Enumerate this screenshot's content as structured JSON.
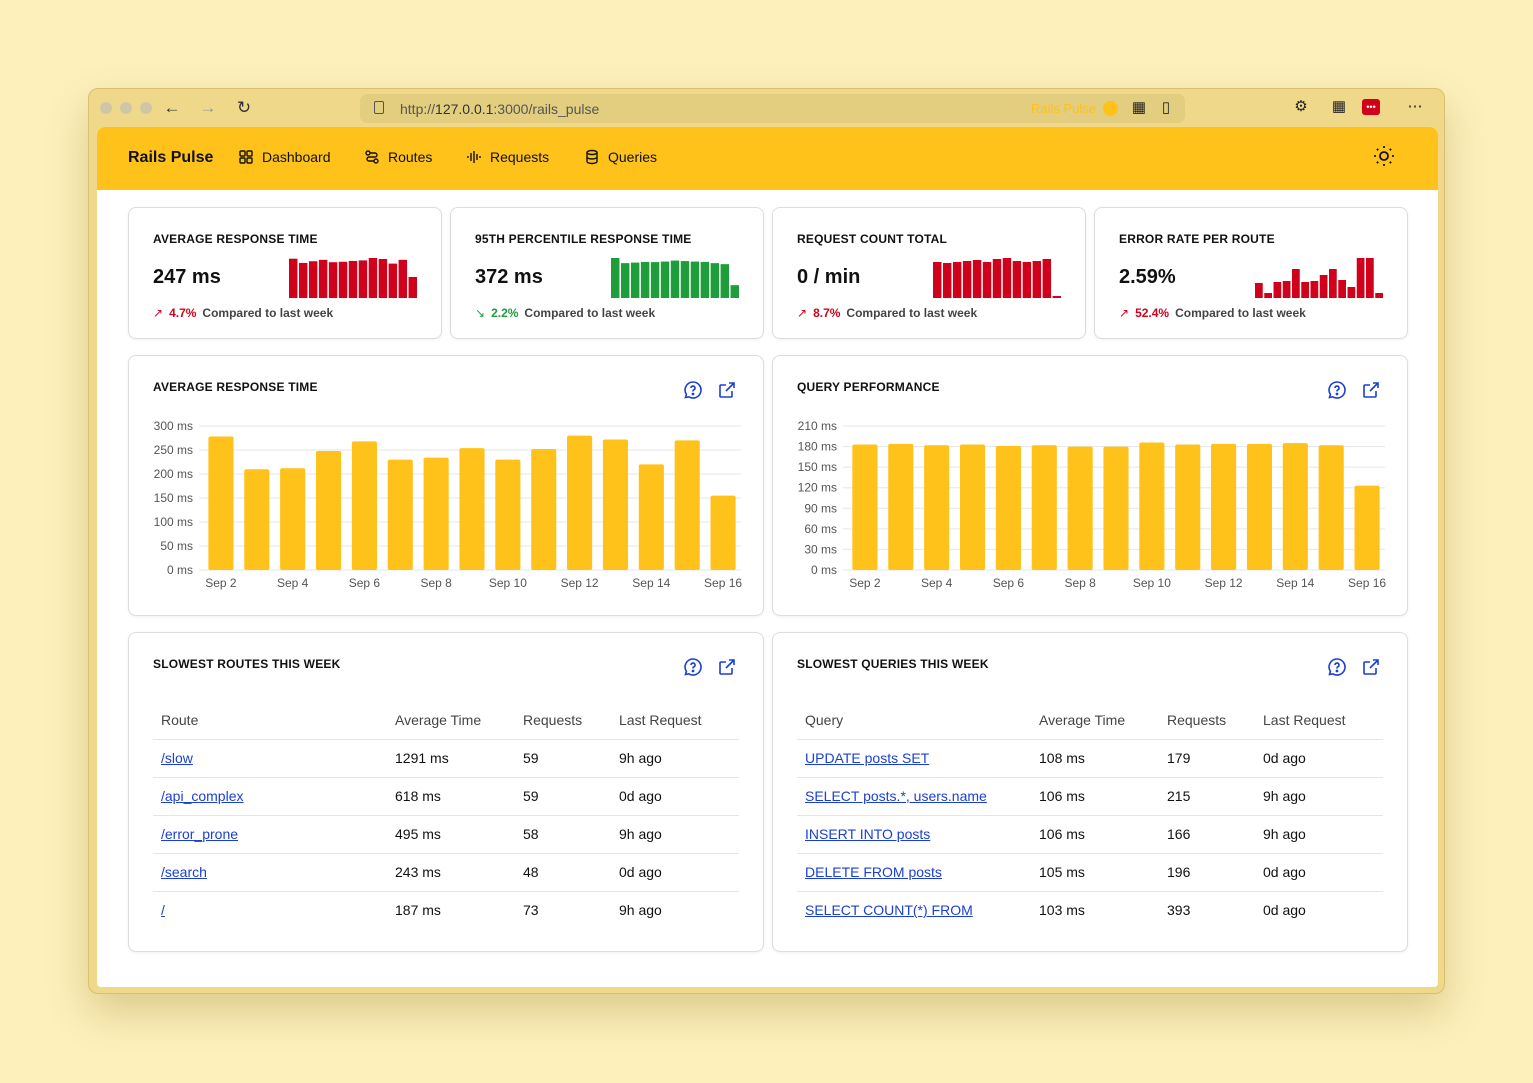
{
  "browser": {
    "url_prefix": "http://",
    "url_host": "127.0.0.1",
    "url_path": ":3000/rails_pulse",
    "tab_brand": "Rails Pulse"
  },
  "nav": {
    "brand": "Rails Pulse",
    "items": [
      {
        "label": "Dashboard"
      },
      {
        "label": "Routes"
      },
      {
        "label": "Requests"
      },
      {
        "label": "Queries"
      }
    ]
  },
  "metrics": [
    {
      "title": "AVERAGE RESPONSE TIME",
      "value": "247 ms",
      "trend": "up",
      "change": "4.7%",
      "compare": "Compared to last week",
      "color": "#d0021b",
      "spark": [
        280,
        250,
        262,
        272,
        255,
        258,
        264,
        268,
        285,
        278,
        245,
        272,
        150
      ]
    },
    {
      "title": "95TH PERCENTILE RESPONSE TIME",
      "value": "372 ms",
      "trend": "down",
      "change": "2.2%",
      "compare": "Compared to last week",
      "color": "#1e9e3a",
      "spark": [
        390,
        340,
        345,
        352,
        350,
        355,
        365,
        360,
        355,
        352,
        340,
        330,
        125
      ]
    },
    {
      "title": "REQUEST COUNT TOTAL",
      "value": "0 / min",
      "trend": "up",
      "change": "8.7%",
      "compare": "Compared to last week",
      "color": "#d0021b",
      "spark": [
        36,
        35,
        36,
        37,
        38,
        36,
        39,
        40,
        37,
        36,
        37,
        39,
        2
      ]
    },
    {
      "title": "ERROR RATE PER ROUTE",
      "value": "2.59%",
      "trend": "up",
      "change": "52.4%",
      "compare": "Compared to last week",
      "color": "#d0021b",
      "spark": [
        1.5,
        0.5,
        1.6,
        1.7,
        2.9,
        1.6,
        1.7,
        2.3,
        2.9,
        1.8,
        1.1,
        4.0,
        4.0,
        0.5
      ]
    }
  ],
  "charts": {
    "response": {
      "title": "AVERAGE RESPONSE TIME",
      "chart_data": {
        "type": "bar",
        "categories": [
          "Sep 2",
          "Sep 3",
          "Sep 4",
          "Sep 5",
          "Sep 6",
          "Sep 7",
          "Sep 8",
          "Sep 9",
          "Sep 10",
          "Sep 11",
          "Sep 12",
          "Sep 13",
          "Sep 14",
          "Sep 15",
          "Sep 16"
        ],
        "tick_labels": [
          "Sep 2",
          "Sep 4",
          "Sep 6",
          "Sep 8",
          "Sep 10",
          "Sep 12",
          "Sep 14",
          "Sep 16"
        ],
        "values": [
          278,
          210,
          212,
          248,
          268,
          230,
          234,
          254,
          230,
          252,
          280,
          272,
          220,
          270,
          155
        ],
        "yticks": [
          0,
          50,
          100,
          150,
          200,
          250,
          300
        ],
        "ylim": [
          0,
          300
        ],
        "unit": "ms",
        "color": "#ffc21a"
      }
    },
    "query": {
      "title": "QUERY PERFORMANCE",
      "chart_data": {
        "type": "bar",
        "categories": [
          "Sep 2",
          "Sep 3",
          "Sep 4",
          "Sep 5",
          "Sep 6",
          "Sep 7",
          "Sep 8",
          "Sep 9",
          "Sep 10",
          "Sep 11",
          "Sep 12",
          "Sep 13",
          "Sep 14",
          "Sep 15",
          "Sep 16"
        ],
        "tick_labels": [
          "Sep 2",
          "Sep 4",
          "Sep 6",
          "Sep 8",
          "Sep 10",
          "Sep 12",
          "Sep 14",
          "Sep 16"
        ],
        "values": [
          183,
          184,
          182,
          183,
          181,
          182,
          180,
          180,
          186,
          183,
          184,
          184,
          185,
          182,
          123
        ],
        "yticks": [
          0,
          30,
          60,
          90,
          120,
          150,
          180,
          210
        ],
        "ylim": [
          0,
          210
        ],
        "unit": "ms",
        "color": "#ffc21a"
      }
    }
  },
  "slowest_routes": {
    "title": "SLOWEST ROUTES THIS WEEK",
    "headers": [
      "Route",
      "Average Time",
      "Requests",
      "Last Request"
    ],
    "rows": [
      [
        "/slow",
        "1291 ms",
        "59",
        "9h ago"
      ],
      [
        "/api_complex",
        "618 ms",
        "59",
        "0d ago"
      ],
      [
        "/error_prone",
        "495 ms",
        "58",
        "9h ago"
      ],
      [
        "/search",
        "243 ms",
        "48",
        "0d ago"
      ],
      [
        "/",
        "187 ms",
        "73",
        "9h ago"
      ]
    ]
  },
  "slowest_queries": {
    "title": "SLOWEST QUERIES THIS WEEK",
    "headers": [
      "Query",
      "Average Time",
      "Requests",
      "Last Request"
    ],
    "rows": [
      [
        "UPDATE posts SET",
        "108 ms",
        "179",
        "0d ago"
      ],
      [
        "SELECT posts.*, users.name",
        "106 ms",
        "215",
        "9h ago"
      ],
      [
        "INSERT INTO posts",
        "106 ms",
        "166",
        "9h ago"
      ],
      [
        "DELETE FROM posts",
        "105 ms",
        "196",
        "0d ago"
      ],
      [
        "SELECT COUNT(*) FROM",
        "103 ms",
        "393",
        "0d ago"
      ]
    ]
  }
}
